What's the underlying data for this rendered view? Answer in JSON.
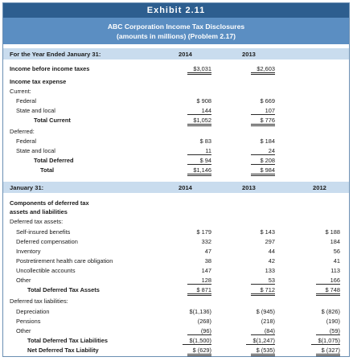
{
  "exhibit_title": "Exhibit 2.11",
  "caption_line1": "ABC Corporation Income Tax Disclosures",
  "caption_line2": "(amounts in millions) (Problem 2.17)",
  "section1": {
    "header_label": "For the Year Ended January 31:",
    "col_2014": "2014",
    "col_2013": "2013",
    "rows": [
      {
        "label": "Income before income taxes",
        "v2014": "$3,031",
        "v2013": "$2,603"
      },
      {
        "label": "Income tax expense"
      },
      {
        "label": "Current:"
      },
      {
        "label": "Federal",
        "v2014": "$ 908",
        "v2013": "$ 669"
      },
      {
        "label": "State and local",
        "v2014": "144",
        "v2013": "107"
      },
      {
        "label": "Total Current",
        "v2014": "$1,052",
        "v2013": "$ 776"
      },
      {
        "label": "Deferred:"
      },
      {
        "label": "Federal",
        "v2014": "$ 83",
        "v2013": "$ 184"
      },
      {
        "label": "State and local",
        "v2014": "11",
        "v2013": "24"
      },
      {
        "label": "Total Deferred",
        "v2014": "$ 94",
        "v2013": "$ 208"
      },
      {
        "label": "Total",
        "v2014": "$1,146",
        "v2013": "$ 984"
      }
    ]
  },
  "section2": {
    "header_label": "January 31:",
    "col_2014": "2014",
    "col_2013": "2013",
    "col_2012": "2012",
    "title_line1": "Components of deferred tax",
    "title_line2": "assets and liabilities",
    "rows": [
      {
        "label": "Deferred tax assets:"
      },
      {
        "label": "Self-insured benefits",
        "v2014": "$ 179",
        "v2013": "$ 143",
        "v2012": "$ 188"
      },
      {
        "label": "Deferred compensation",
        "v2014": "332",
        "v2013": "297",
        "v2012": "184"
      },
      {
        "label": "Inventory",
        "v2014": "47",
        "v2013": "44",
        "v2012": "56"
      },
      {
        "label": "Postretirement health care obligation",
        "v2014": "38",
        "v2013": "42",
        "v2012": "41"
      },
      {
        "label": "Uncollectible accounts",
        "v2014": "147",
        "v2013": "133",
        "v2012": "113"
      },
      {
        "label": "Other",
        "v2014": "128",
        "v2013": "53",
        "v2012": "166"
      },
      {
        "label": "Total Deferred Tax Assets",
        "v2014": "$ 871",
        "v2013": "$ 712",
        "v2012": "$ 748"
      },
      {
        "label": "Deferred tax liabilities:"
      },
      {
        "label": "Depreciation",
        "v2014": "$(1,136)",
        "v2013": "$ (945)",
        "v2012": "$ (826)"
      },
      {
        "label": "Pensions",
        "v2014": "(268)",
        "v2013": "(218)",
        "v2012": "(190)"
      },
      {
        "label": "Other",
        "v2014": "(96)",
        "v2013": "(84)",
        "v2012": "(59)"
      },
      {
        "label": "Total Deferred Tax Liabilities",
        "v2014": "$(1,500)",
        "v2013": "$(1,247)",
        "v2012": "$(1,075)"
      },
      {
        "label": "Net Deferred Tax Liability",
        "v2014": "$ (629)",
        "v2013": "$ (535)",
        "v2012": "$ (327)"
      }
    ]
  }
}
